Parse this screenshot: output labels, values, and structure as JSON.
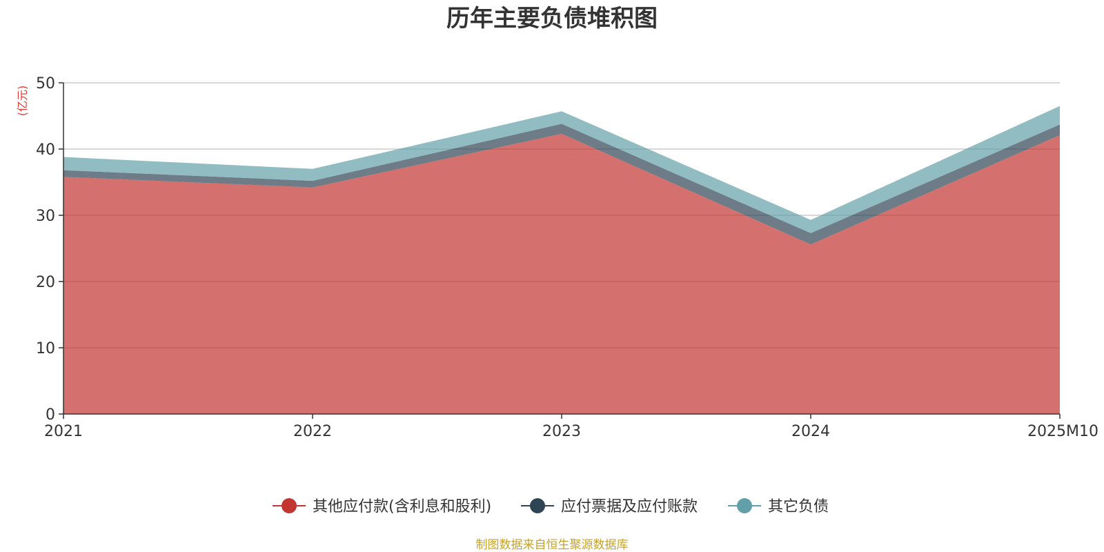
{
  "chart_data": {
    "type": "area",
    "stacked": true,
    "title": "历年主要负债堆积图",
    "unit": "(亿元)",
    "categories": [
      "2021",
      "2022",
      "2023",
      "2024",
      "2025M10"
    ],
    "ylim": [
      0,
      50
    ],
    "yticks": [
      0,
      10,
      20,
      30,
      40,
      50
    ],
    "grid": true,
    "legend_position": "bottom",
    "series": [
      {
        "name": "其他应付款(含利息和股利)",
        "color": "#c23531",
        "values": [
          35.8,
          34.2,
          42.3,
          25.6,
          42.1
        ]
      },
      {
        "name": "应付票据及应付账款",
        "color": "#2f4554",
        "values": [
          1.0,
          1.0,
          1.5,
          1.7,
          1.6
        ]
      },
      {
        "name": "其它负债",
        "color": "#61a0a8",
        "values": [
          2.0,
          1.8,
          1.9,
          2.0,
          2.8
        ]
      }
    ],
    "source": "制图数据来自恒生聚源数据库"
  }
}
